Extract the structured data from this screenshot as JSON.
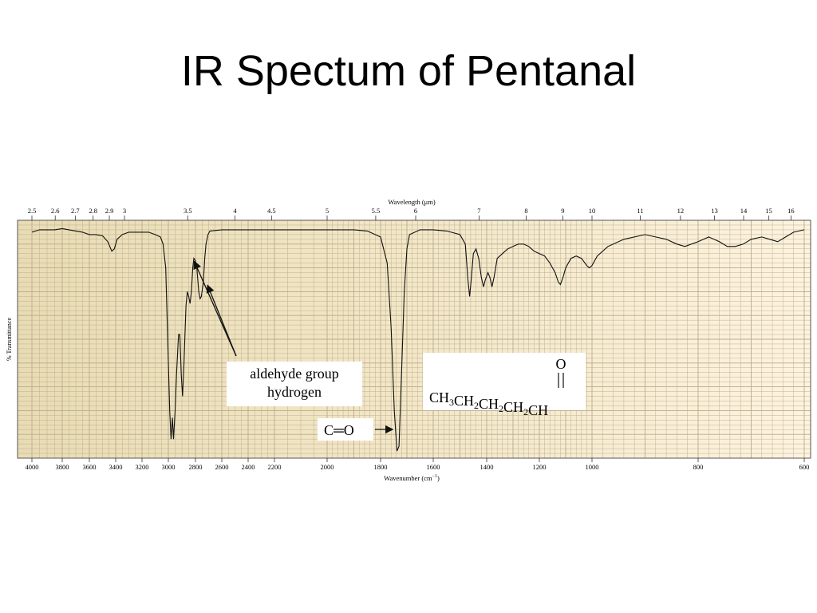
{
  "slide": {
    "title": "IR Spectum of Pentanal"
  },
  "chart_data": {
    "type": "line",
    "top_axis": {
      "label": "Wavelength (μm)",
      "ticks": [
        {
          "label": "2.5",
          "value": 2.5
        },
        {
          "label": "2.6",
          "value": 2.6
        },
        {
          "label": "2.7",
          "value": 2.7
        },
        {
          "label": "2.8",
          "value": 2.8
        },
        {
          "label": "2.9",
          "value": 2.9
        },
        {
          "label": "3",
          "value": 3
        },
        {
          "label": "3.5",
          "value": 3.5
        },
        {
          "label": "4",
          "value": 4
        },
        {
          "label": "4.5",
          "value": 4.5
        },
        {
          "label": "5",
          "value": 5
        },
        {
          "label": "5.5",
          "value": 5.5
        },
        {
          "label": "6",
          "value": 6
        },
        {
          "label": "7",
          "value": 7
        },
        {
          "label": "8",
          "value": 8
        },
        {
          "label": "9",
          "value": 9
        },
        {
          "label": "10",
          "value": 10
        },
        {
          "label": "11",
          "value": 11
        },
        {
          "label": "12",
          "value": 12
        },
        {
          "label": "13",
          "value": 13
        },
        {
          "label": "14",
          "value": 14
        },
        {
          "label": "15",
          "value": 15
        },
        {
          "label": "16",
          "value": 16
        }
      ]
    },
    "bottom_axis": {
      "label": "Wavenumber (cm",
      "label_superscript": "−1",
      "label_close": ")",
      "ticks": [
        {
          "label": "4000",
          "value": 4000
        },
        {
          "label": "3800",
          "value": 3800
        },
        {
          "label": "3600",
          "value": 3600
        },
        {
          "label": "3400",
          "value": 3400
        },
        {
          "label": "3200",
          "value": 3200
        },
        {
          "label": "3000",
          "value": 3000
        },
        {
          "label": "2800",
          "value": 2800
        },
        {
          "label": "2600",
          "value": 2600
        },
        {
          "label": "2400",
          "value": 2400
        },
        {
          "label": "2200",
          "value": 2200
        },
        {
          "label": "2000",
          "value": 2000
        },
        {
          "label": "1800",
          "value": 1800
        },
        {
          "label": "1600",
          "value": 1600
        },
        {
          "label": "1400",
          "value": 1400
        },
        {
          "label": "1200",
          "value": 1200
        },
        {
          "label": "1000",
          "value": 1000
        },
        {
          "label": "800",
          "value": 800
        },
        {
          "label": "600",
          "value": 600
        }
      ]
    },
    "ylabel": "% Transmittance",
    "ylim": [
      0,
      100
    ],
    "grid": true,
    "colors": {
      "line": "#111111",
      "paper_left": "#e9dcb4",
      "paper_right": "#fdf3de",
      "grid": "#b8ab8c"
    },
    "annotations": {
      "aldehyde_label": [
        "aldehyde group",
        "hydrogen"
      ],
      "aldehyde_targets_cm1": [
        2820,
        2720
      ],
      "carbonyl_label": "C═O",
      "carbonyl_target_cm1": 1730,
      "structure_oxygen": "O",
      "structure_formula": "CH3CH2CH2CH2CH"
    },
    "series": [
      {
        "points": [
          [
            4000,
            95
          ],
          [
            3950,
            96
          ],
          [
            3900,
            96
          ],
          [
            3850,
            96
          ],
          [
            3800,
            96.5
          ],
          [
            3750,
            96
          ],
          [
            3700,
            95.5
          ],
          [
            3650,
            95
          ],
          [
            3600,
            94
          ],
          [
            3550,
            94
          ],
          [
            3500,
            93.5
          ],
          [
            3460,
            91
          ],
          [
            3430,
            87
          ],
          [
            3410,
            88
          ],
          [
            3390,
            92
          ],
          [
            3350,
            94
          ],
          [
            3300,
            95
          ],
          [
            3250,
            95
          ],
          [
            3200,
            95
          ],
          [
            3150,
            95
          ],
          [
            3100,
            94
          ],
          [
            3060,
            93
          ],
          [
            3040,
            90
          ],
          [
            3020,
            80
          ],
          [
            3005,
            50
          ],
          [
            2990,
            20
          ],
          [
            2980,
            8
          ],
          [
            2970,
            17
          ],
          [
            2962,
            8
          ],
          [
            2950,
            20
          ],
          [
            2940,
            35
          ],
          [
            2925,
            52
          ],
          [
            2915,
            52
          ],
          [
            2905,
            35
          ],
          [
            2895,
            26
          ],
          [
            2885,
            40
          ],
          [
            2870,
            64
          ],
          [
            2860,
            70
          ],
          [
            2850,
            68
          ],
          [
            2840,
            65
          ],
          [
            2830,
            70
          ],
          [
            2820,
            80
          ],
          [
            2812,
            84
          ],
          [
            2800,
            83
          ],
          [
            2790,
            80
          ],
          [
            2775,
            70
          ],
          [
            2765,
            67
          ],
          [
            2755,
            68
          ],
          [
            2740,
            74
          ],
          [
            2730,
            84
          ],
          [
            2720,
            90
          ],
          [
            2705,
            94
          ],
          [
            2690,
            95.5
          ],
          [
            2600,
            96
          ],
          [
            2400,
            96
          ],
          [
            2200,
            96
          ],
          [
            2000,
            96
          ],
          [
            1900,
            96
          ],
          [
            1850,
            95.5
          ],
          [
            1800,
            93
          ],
          [
            1775,
            82
          ],
          [
            1760,
            55
          ],
          [
            1748,
            20
          ],
          [
            1738,
            3
          ],
          [
            1730,
            5
          ],
          [
            1722,
            30
          ],
          [
            1710,
            70
          ],
          [
            1700,
            88
          ],
          [
            1690,
            94
          ],
          [
            1650,
            96
          ],
          [
            1600,
            96
          ],
          [
            1550,
            95.5
          ],
          [
            1500,
            94
          ],
          [
            1480,
            90
          ],
          [
            1470,
            75
          ],
          [
            1464,
            68
          ],
          [
            1458,
            75
          ],
          [
            1450,
            86
          ],
          [
            1440,
            88
          ],
          [
            1430,
            84
          ],
          [
            1420,
            76
          ],
          [
            1412,
            72
          ],
          [
            1405,
            75
          ],
          [
            1395,
            78
          ],
          [
            1388,
            76
          ],
          [
            1380,
            72
          ],
          [
            1372,
            76
          ],
          [
            1360,
            84
          ],
          [
            1340,
            86
          ],
          [
            1320,
            88
          ],
          [
            1300,
            89
          ],
          [
            1280,
            90
          ],
          [
            1260,
            90
          ],
          [
            1240,
            89
          ],
          [
            1220,
            87
          ],
          [
            1200,
            86
          ],
          [
            1180,
            85
          ],
          [
            1160,
            82
          ],
          [
            1150,
            80
          ],
          [
            1140,
            78
          ],
          [
            1128,
            74
          ],
          [
            1120,
            73
          ],
          [
            1110,
            76
          ],
          [
            1100,
            80
          ],
          [
            1080,
            84
          ],
          [
            1060,
            85
          ],
          [
            1040,
            84
          ],
          [
            1020,
            81
          ],
          [
            1010,
            80
          ],
          [
            1000,
            81
          ],
          [
            990,
            85
          ],
          [
            970,
            89
          ],
          [
            940,
            92
          ],
          [
            900,
            94
          ],
          [
            880,
            93
          ],
          [
            860,
            92
          ],
          [
            840,
            90
          ],
          [
            825,
            89
          ],
          [
            800,
            91
          ],
          [
            780,
            93
          ],
          [
            760,
            91
          ],
          [
            745,
            89
          ],
          [
            730,
            89
          ],
          [
            715,
            90
          ],
          [
            700,
            92
          ],
          [
            680,
            93
          ],
          [
            665,
            92
          ],
          [
            650,
            91
          ],
          [
            635,
            93
          ],
          [
            620,
            95
          ],
          [
            600,
            96
          ]
        ]
      }
    ]
  }
}
